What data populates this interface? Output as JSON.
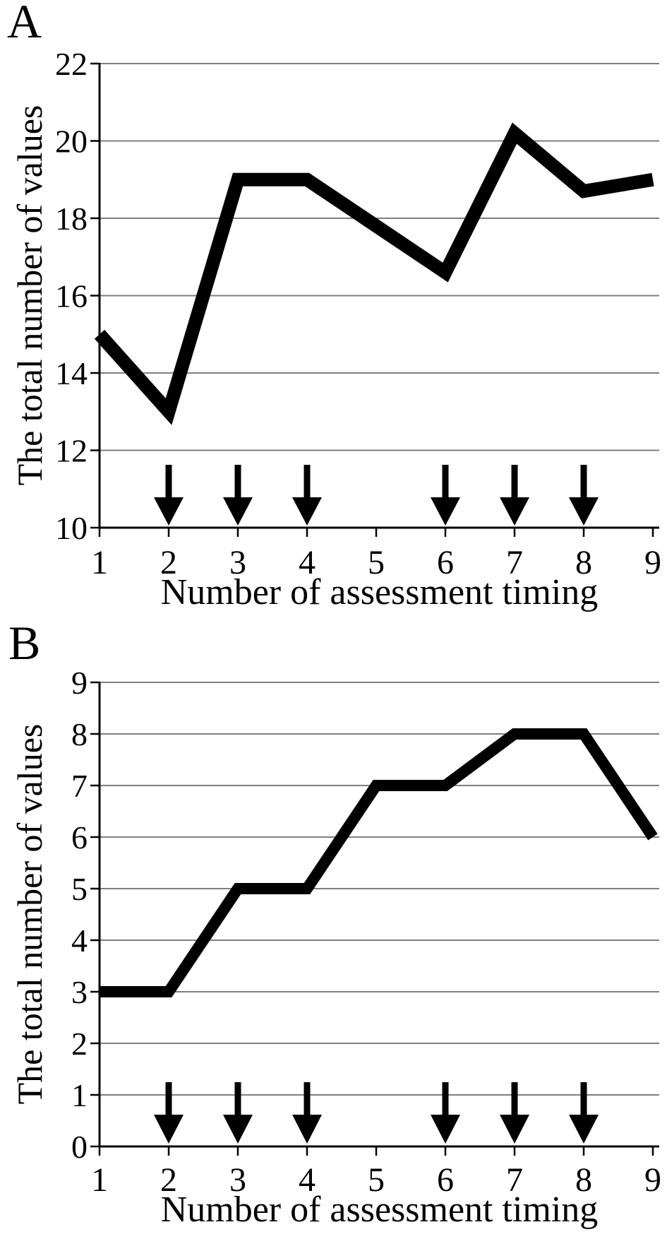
{
  "figure": {
    "background": "#ffffff",
    "text_color": "#000000"
  },
  "chart_data": [
    {
      "type": "line",
      "panel_label": "A",
      "title": "",
      "xlabel": "Number of assessment timing",
      "ylabel": "The total number of values",
      "x": [
        1,
        2,
        3,
        4,
        5,
        6,
        7,
        8,
        9
      ],
      "values": [
        15,
        13,
        19,
        19,
        17.8,
        16.6,
        20.2,
        18.7,
        19
      ],
      "ylim": [
        10,
        22
      ],
      "yticks": [
        10,
        12,
        14,
        16,
        18,
        20,
        22
      ],
      "xticks": [
        1,
        2,
        3,
        4,
        5,
        6,
        7,
        8,
        9
      ],
      "arrows_at_x": [
        2,
        3,
        4,
        6,
        7,
        8
      ],
      "grid": "horizontal",
      "legend": "none",
      "line_color": "#000000",
      "grid_color": "#7f7f7f",
      "axis_color": "#000000",
      "arrow_color": "#000000"
    },
    {
      "type": "line",
      "panel_label": "B",
      "title": "",
      "xlabel": "Number of assessment timing",
      "ylabel": "The total number of values",
      "x": [
        1,
        2,
        3,
        4,
        5,
        6,
        7,
        8,
        9
      ],
      "values": [
        3,
        3,
        5,
        5,
        7,
        7,
        8,
        8,
        6
      ],
      "ylim": [
        0,
        9
      ],
      "yticks": [
        0,
        1,
        2,
        3,
        4,
        5,
        6,
        7,
        8,
        9
      ],
      "xticks": [
        1,
        2,
        3,
        4,
        5,
        6,
        7,
        8,
        9
      ],
      "arrows_at_x": [
        2,
        3,
        4,
        6,
        7,
        8
      ],
      "grid": "horizontal",
      "legend": "none",
      "line_color": "#000000",
      "grid_color": "#7f7f7f",
      "axis_color": "#000000",
      "arrow_color": "#000000"
    }
  ]
}
